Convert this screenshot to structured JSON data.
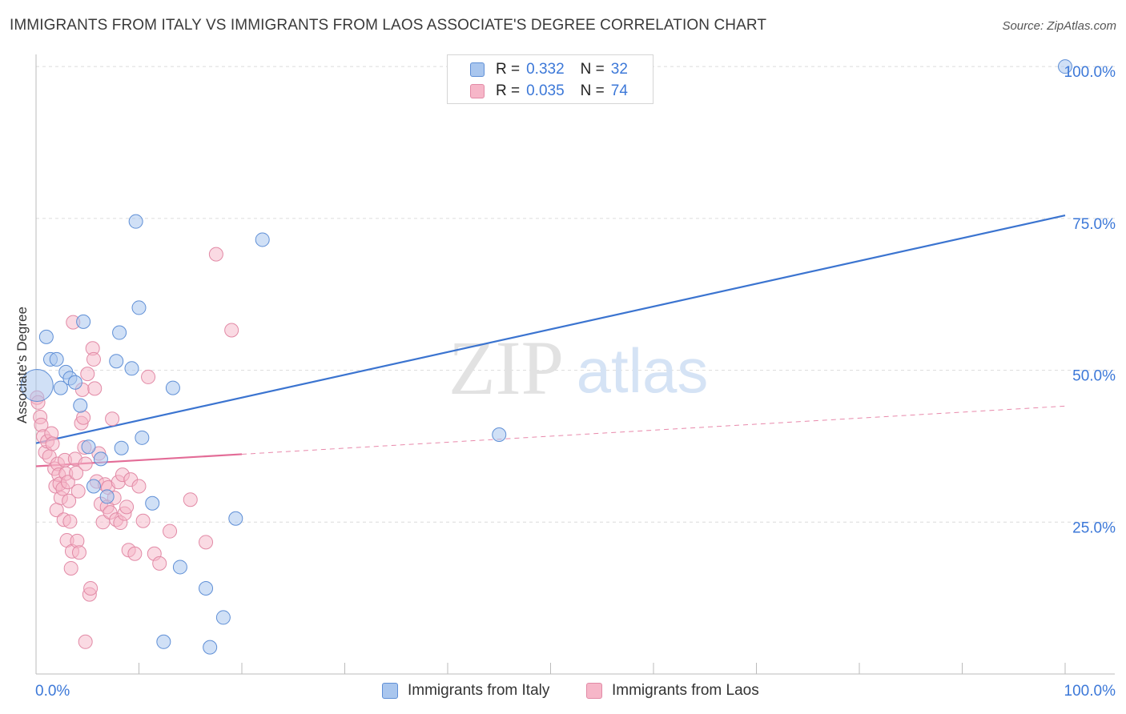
{
  "header": {
    "title": "IMMIGRANTS FROM ITALY VS IMMIGRANTS FROM LAOS ASSOCIATE'S DEGREE CORRELATION CHART",
    "source": "Source: ZipAtlas.com"
  },
  "legend": {
    "italy": {
      "r_label": "R =",
      "r_value": "0.332",
      "n_label": "N =",
      "n_value": "32"
    },
    "laos": {
      "r_label": "R =",
      "r_value": "0.035",
      "n_label": "N =",
      "n_value": "74"
    }
  },
  "bottom_legend": {
    "italy": "Immigrants from Italy",
    "laos": "Immigrants from Laos"
  },
  "colors": {
    "italy_fill": "#a9c6ee",
    "italy_stroke": "#5f8fd6",
    "italy_line": "#3b74d0",
    "laos_fill": "#f6b6c8",
    "laos_stroke": "#e28aa6",
    "laos_line": "#e36c97",
    "tick_text": "#3c78d8",
    "grid": "#dcdcdc"
  },
  "chart_data": {
    "type": "scatter",
    "title": "IMMIGRANTS FROM ITALY VS IMMIGRANTS FROM LAOS ASSOCIATE'S DEGREE CORRELATION CHART",
    "xlabel": "",
    "ylabel": "Associate's Degree",
    "xlim": [
      0,
      100
    ],
    "ylim": [
      0,
      102
    ],
    "x_tick_labels": [
      "0.0%",
      "100.0%"
    ],
    "y_tick_labels": [
      "25.0%",
      "50.0%",
      "75.0%",
      "100.0%"
    ],
    "y_ticks": [
      25,
      50,
      75,
      100
    ],
    "grid": true,
    "legend_position": "top-center",
    "watermark": "ZIPatlas",
    "series": [
      {
        "name": "Immigrants from Italy",
        "r": 0.332,
        "n": 32,
        "trend": {
          "x0": 0,
          "y0": 38.0,
          "x1": 100,
          "y1": 75.5,
          "dashed_from": null
        },
        "points": [
          [
            0.1,
            47.5
          ],
          [
            1.0,
            55.5
          ],
          [
            1.4,
            51.8
          ],
          [
            2.0,
            51.8
          ],
          [
            2.4,
            47.1
          ],
          [
            2.9,
            49.7
          ],
          [
            3.3,
            48.7
          ],
          [
            3.8,
            48.0
          ],
          [
            4.3,
            44.2
          ],
          [
            4.6,
            58.0
          ],
          [
            5.1,
            37.4
          ],
          [
            5.6,
            30.9
          ],
          [
            6.3,
            35.4
          ],
          [
            6.9,
            29.2
          ],
          [
            7.8,
            51.5
          ],
          [
            8.1,
            56.2
          ],
          [
            8.3,
            37.2
          ],
          [
            9.3,
            50.3
          ],
          [
            9.7,
            74.5
          ],
          [
            10.0,
            60.3
          ],
          [
            10.3,
            38.9
          ],
          [
            11.3,
            28.1
          ],
          [
            12.4,
            5.3
          ],
          [
            13.3,
            47.1
          ],
          [
            14.0,
            17.6
          ],
          [
            16.5,
            14.1
          ],
          [
            16.9,
            4.4
          ],
          [
            18.2,
            9.3
          ],
          [
            19.4,
            25.6
          ],
          [
            22.0,
            71.5
          ],
          [
            45.0,
            39.4
          ],
          [
            100.0,
            100.0
          ]
        ]
      },
      {
        "name": "Immigrants from Laos",
        "r": 0.035,
        "n": 74,
        "trend": {
          "x0": 0,
          "y0": 34.2,
          "x1": 100,
          "y1": 44.1,
          "dashed_from": 20
        },
        "points": [
          [
            0.1,
            45.5
          ],
          [
            0.2,
            44.7
          ],
          [
            0.4,
            42.3
          ],
          [
            0.5,
            41.0
          ],
          [
            0.7,
            39.1
          ],
          [
            0.9,
            36.5
          ],
          [
            1.1,
            38.3
          ],
          [
            1.3,
            35.8
          ],
          [
            1.5,
            39.6
          ],
          [
            1.6,
            37.9
          ],
          [
            1.8,
            33.8
          ],
          [
            1.9,
            30.9
          ],
          [
            2.0,
            27.0
          ],
          [
            2.1,
            34.6
          ],
          [
            2.2,
            32.8
          ],
          [
            2.3,
            31.3
          ],
          [
            2.4,
            29.0
          ],
          [
            2.6,
            30.5
          ],
          [
            2.7,
            25.4
          ],
          [
            2.8,
            35.2
          ],
          [
            2.9,
            33.0
          ],
          [
            3.0,
            22.0
          ],
          [
            3.1,
            31.6
          ],
          [
            3.2,
            28.5
          ],
          [
            3.3,
            25.1
          ],
          [
            3.4,
            17.4
          ],
          [
            3.5,
            20.2
          ],
          [
            3.6,
            57.9
          ],
          [
            3.8,
            35.4
          ],
          [
            3.9,
            33.1
          ],
          [
            4.0,
            21.9
          ],
          [
            4.1,
            30.1
          ],
          [
            4.2,
            20.0
          ],
          [
            4.4,
            41.3
          ],
          [
            4.5,
            46.8
          ],
          [
            4.6,
            42.2
          ],
          [
            4.7,
            37.3
          ],
          [
            4.8,
            34.6
          ],
          [
            5.0,
            49.4
          ],
          [
            5.2,
            13.1
          ],
          [
            5.3,
            14.1
          ],
          [
            5.5,
            53.6
          ],
          [
            5.6,
            51.8
          ],
          [
            5.7,
            47.0
          ],
          [
            5.9,
            31.7
          ],
          [
            6.1,
            36.3
          ],
          [
            6.3,
            28.0
          ],
          [
            6.5,
            25.0
          ],
          [
            6.7,
            31.2
          ],
          [
            6.9,
            27.5
          ],
          [
            7.0,
            30.7
          ],
          [
            7.2,
            26.6
          ],
          [
            7.4,
            42.0
          ],
          [
            7.6,
            29.0
          ],
          [
            7.8,
            25.4
          ],
          [
            8.0,
            31.6
          ],
          [
            8.2,
            24.9
          ],
          [
            8.4,
            32.8
          ],
          [
            8.6,
            26.4
          ],
          [
            8.8,
            27.5
          ],
          [
            9.0,
            20.4
          ],
          [
            9.2,
            32.0
          ],
          [
            9.6,
            19.8
          ],
          [
            10.0,
            30.9
          ],
          [
            10.4,
            25.2
          ],
          [
            10.9,
            48.9
          ],
          [
            11.5,
            19.8
          ],
          [
            12.0,
            18.2
          ],
          [
            13.0,
            23.5
          ],
          [
            15.0,
            28.7
          ],
          [
            16.5,
            21.7
          ],
          [
            17.5,
            69.1
          ],
          [
            19.0,
            56.6
          ],
          [
            4.8,
            5.3
          ]
        ]
      }
    ]
  }
}
